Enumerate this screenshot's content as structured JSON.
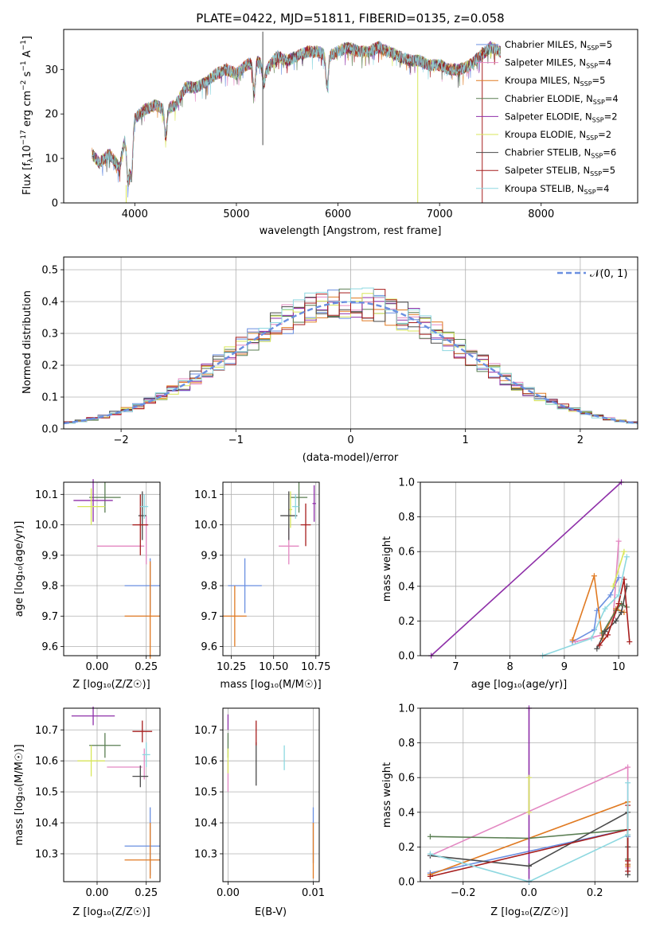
{
  "figure_title": "PLATE=0422, MJD=51811, FIBERID=0135, z=0.058",
  "colors": {
    "Chabrier MILES": "#6a8fe0",
    "Salpeter MILES": "#e388c2",
    "Kroupa MILES": "#e07a22",
    "Chabrier ELODIE": "#5a7e52",
    "Salpeter ELODIE": "#8e2fa8",
    "Kroupa ELODIE": "#d8e65a",
    "Chabrier STELIB": "#4a4a4a",
    "Salpeter STELIB": "#a61d1d",
    "Kroupa STELIB": "#8ed8e0",
    "normal": "#6a8fe0"
  },
  "chart_data": [
    {
      "id": "spectrum",
      "type": "line",
      "title": "PLATE=0422, MJD=51811, FIBERID=0135, z=0.058",
      "xlabel": "wavelength [Angstrom, rest frame]",
      "ylabel": "Flux [f_λ 10^-17 erg cm^-2 s^-1 A^-1]",
      "xlim": [
        3300,
        8950
      ],
      "ylim": [
        0,
        39
      ],
      "xticks": [
        4000,
        5000,
        6000,
        7000,
        8000
      ],
      "yticks": [
        0,
        10,
        20,
        30
      ],
      "legend_position": "right",
      "series": [
        {
          "name": "Chabrier MILES, N_SSP=5",
          "label_main": "Chabrier MILES, N",
          "label_sub": "SSP",
          "label_tail": "=5"
        },
        {
          "name": "Salpeter MILES, N_SSP=4",
          "label_main": "Salpeter MILES, N",
          "label_sub": "SSP",
          "label_tail": "=4"
        },
        {
          "name": "Kroupa MILES, N_SSP=5",
          "label_main": "Kroupa MILES, N",
          "label_sub": "SSP",
          "label_tail": "=5"
        },
        {
          "name": "Chabrier ELODIE, N_SSP=4",
          "label_main": "Chabrier ELODIE, N",
          "label_sub": "SSP",
          "label_tail": "=4"
        },
        {
          "name": "Salpeter ELODIE, N_SSP=2",
          "label_main": "Salpeter ELODIE, N",
          "label_sub": "SSP",
          "label_tail": "=2"
        },
        {
          "name": "Kroupa ELODIE, N_SSP=2",
          "label_main": "Kroupa ELODIE, N",
          "label_sub": "SSP",
          "label_tail": "=2"
        },
        {
          "name": "Chabrier STELIB, N_SSP=6",
          "label_main": "Chabrier STELIB, N",
          "label_sub": "SSP",
          "label_tail": "=6"
        },
        {
          "name": "Salpeter STELIB, N_SSP=5",
          "label_main": "Salpeter STELIB, N",
          "label_sub": "SSP",
          "label_tail": "=5"
        },
        {
          "name": "Kroupa STELIB, N_SSP=4",
          "label_main": "Kroupa STELIB, N",
          "label_sub": "SSP",
          "label_tail": "=4"
        }
      ],
      "continuum": {
        "x": [
          3580,
          3650,
          3750,
          3850,
          3900,
          3950,
          4000,
          4100,
          4200,
          4300,
          4400,
          4500,
          4600,
          4700,
          4800,
          4900,
          5000,
          5100,
          5200,
          5300,
          5400,
          5500,
          5600,
          5700,
          5800,
          5900,
          6000,
          6100,
          6200,
          6300,
          6400,
          6500,
          6600,
          6700,
          6800,
          6900,
          7000,
          7100,
          7200,
          7300,
          7400,
          7500,
          7600
        ],
        "y": [
          11,
          9,
          11,
          8,
          14,
          12,
          19,
          21,
          22,
          21,
          22,
          26,
          26,
          27,
          29,
          30,
          29,
          31,
          32,
          30,
          33,
          32,
          33,
          34,
          34,
          33,
          34,
          35,
          34,
          34,
          35,
          34,
          33,
          32,
          32,
          31,
          31,
          30,
          30,
          31,
          33,
          35,
          34
        ]
      },
      "absorption_lines": [
        {
          "x": 3933,
          "y": 5
        },
        {
          "x": 3968,
          "y": 6
        },
        {
          "x": 4305,
          "y": 15
        },
        {
          "x": 5175,
          "y": 25
        },
        {
          "x": 5270,
          "y": 27
        },
        {
          "x": 5893,
          "y": 26
        }
      ],
      "spikes": [
        {
          "x": 3915,
          "y_top": 4,
          "y_bottom": 0,
          "series": 5
        },
        {
          "x": 5260,
          "y_top": 38.5,
          "y_bottom": 13,
          "series": 6
        },
        {
          "x": 6785,
          "y_top": 31,
          "y_bottom": 0,
          "series": 5
        },
        {
          "x": 7420,
          "y_top": 35,
          "y_bottom": 0,
          "series": 7
        }
      ]
    },
    {
      "id": "residuals",
      "type": "histogram",
      "xlabel": "(data-model)/error",
      "ylabel": "Normed distribution",
      "xlim": [
        -2.5,
        2.5
      ],
      "ylim": [
        0,
        0.54
      ],
      "xticks": [
        -2,
        -1,
        0,
        1,
        2
      ],
      "xtick_labels": [
        "−2",
        "−1",
        "0",
        "1",
        "2"
      ],
      "yticks": [
        0.0,
        0.1,
        0.2,
        0.3,
        0.4,
        0.5
      ],
      "ytick_labels": [
        "0.0",
        "0.1",
        "0.2",
        "0.3",
        "0.4",
        "0.5"
      ],
      "grid": true,
      "legend_position": "top-right",
      "normal_label": "𝒩(0, 1)",
      "bin_width": 0.1
    },
    {
      "id": "age_vs_Z",
      "type": "scatter",
      "xlabel": "Z [log₁₀(Z/Z☉)]",
      "ylabel": "age  [log₁₀(age/yr)]",
      "xlim": [
        -0.17,
        0.32
      ],
      "ylim": [
        9.57,
        10.14
      ],
      "xticks": [
        0.0,
        0.25
      ],
      "xtick_labels": [
        "0.00",
        "0.25"
      ],
      "yticks": [
        9.6,
        9.7,
        9.8,
        9.9,
        10.0,
        10.1
      ],
      "ytick_labels": [
        "9.6",
        "9.7",
        "9.8",
        "9.9",
        "10.0",
        "10.1"
      ],
      "grid": true,
      "points": [
        {
          "series": 0,
          "x": 0.23,
          "xerr": 0.09,
          "y": 9.8,
          "yerr": 0.0
        },
        {
          "series": 0,
          "x": 0.27,
          "xerr": 0.0,
          "y": 9.8,
          "yerr": 0.09
        },
        {
          "series": 1,
          "x": 0.12,
          "xerr": 0.12,
          "y": 9.93,
          "yerr": 0.0
        },
        {
          "series": 1,
          "x": 0.25,
          "xerr": 0.0,
          "y": 9.95,
          "yerr": 0.08
        },
        {
          "series": 2,
          "x": 0.23,
          "xerr": 0.09,
          "y": 9.7,
          "yerr": 0.0
        },
        {
          "series": 2,
          "x": 0.27,
          "xerr": 0.0,
          "y": 9.72,
          "yerr": 0.16
        },
        {
          "series": 3,
          "x": 0.04,
          "xerr": 0.08,
          "y": 10.09,
          "yerr": 0.05
        },
        {
          "series": 4,
          "x": -0.02,
          "xerr": 0.1,
          "y": 10.08,
          "yerr": 0.07
        },
        {
          "series": 5,
          "x": -0.03,
          "xerr": 0.07,
          "y": 10.06,
          "yerr": 0.06
        },
        {
          "series": 6,
          "x": 0.23,
          "xerr": 0.02,
          "y": 10.03,
          "yerr": 0.08
        },
        {
          "series": 7,
          "x": 0.22,
          "xerr": 0.04,
          "y": 10.0,
          "yerr": 0.1
        },
        {
          "series": 8,
          "x": 0.24,
          "xerr": 0.02,
          "y": 10.06,
          "yerr": 0.04
        }
      ]
    },
    {
      "id": "age_vs_mass",
      "type": "scatter",
      "xlabel": "mass [log₁₀(M/M☉)]",
      "ylabel": "",
      "xlim": [
        10.2,
        10.77
      ],
      "ylim": [
        9.57,
        10.14
      ],
      "xticks": [
        10.25,
        10.5,
        10.75
      ],
      "xtick_labels": [
        "10.25",
        "10.50",
        "10.75"
      ],
      "yticks": [
        9.6,
        9.7,
        9.8,
        9.9,
        10.0,
        10.1
      ],
      "ytick_labels": [
        "9.6",
        "9.7",
        "9.8",
        "9.9",
        "10.0",
        "10.1"
      ],
      "grid": true,
      "points": [
        {
          "series": 0,
          "x": 10.33,
          "xerr": 0.1,
          "y": 9.8,
          "yerr": 0.09
        },
        {
          "series": 1,
          "x": 10.59,
          "xerr": 0.06,
          "y": 9.93,
          "yerr": 0.06
        },
        {
          "series": 2,
          "x": 10.27,
          "xerr": 0.07,
          "y": 9.7,
          "yerr": 0.1
        },
        {
          "series": 3,
          "x": 10.65,
          "xerr": 0.05,
          "y": 10.09,
          "yerr": 0.05
        },
        {
          "series": 4,
          "x": 10.74,
          "xerr": 0.01,
          "y": 10.07,
          "yerr": 0.06
        },
        {
          "series": 5,
          "x": 10.6,
          "xerr": 0.01,
          "y": 10.05,
          "yerr": 0.06
        },
        {
          "series": 6,
          "x": 10.59,
          "xerr": 0.05,
          "y": 10.03,
          "yerr": 0.08
        },
        {
          "series": 7,
          "x": 10.69,
          "xerr": 0.03,
          "y": 10.0,
          "yerr": 0.07
        },
        {
          "series": 8,
          "x": 10.63,
          "xerr": 0.02,
          "y": 10.06,
          "yerr": 0.04
        }
      ]
    },
    {
      "id": "weight_vs_age",
      "type": "line",
      "xlabel": "age  [log₁₀(age/yr)]",
      "ylabel": "mass weight",
      "xlim": [
        6.35,
        10.35
      ],
      "ylim": [
        0,
        1
      ],
      "xticks": [
        7,
        8,
        9,
        10
      ],
      "xtick_labels": [
        "7",
        "8",
        "9",
        "10"
      ],
      "yticks": [
        0.0,
        0.2,
        0.4,
        0.6,
        0.8,
        1.0
      ],
      "ytick_labels": [
        "0.0",
        "0.2",
        "0.4",
        "0.6",
        "0.8",
        "1.0"
      ],
      "grid": true,
      "series": [
        {
          "series": 0,
          "x": [
            9.15,
            9.55,
            9.6,
            9.85,
            10.0
          ],
          "y": [
            0.08,
            0.15,
            0.26,
            0.35,
            0.45
          ]
        },
        {
          "series": 1,
          "x": [
            9.2,
            9.7,
            9.9,
            10.0
          ],
          "y": [
            0.08,
            0.12,
            0.22,
            0.66
          ]
        },
        {
          "series": 2,
          "x": [
            9.15,
            9.55,
            9.7,
            9.95,
            10.1
          ],
          "y": [
            0.09,
            0.46,
            0.1,
            0.27,
            0.25
          ]
        },
        {
          "series": 3,
          "x": [
            9.7,
            9.95,
            10.05,
            10.15
          ],
          "y": [
            0.13,
            0.26,
            0.3,
            0.28
          ]
        },
        {
          "series": 4,
          "x": [
            6.55,
            10.05
          ],
          "y": [
            0.0,
            1.0
          ]
        },
        {
          "series": 5,
          "x": [
            9.9,
            10.1
          ],
          "y": [
            0.4,
            0.6
          ]
        },
        {
          "series": 6,
          "x": [
            9.6,
            9.75,
            9.95,
            10.05,
            10.15
          ],
          "y": [
            0.04,
            0.14,
            0.2,
            0.25,
            0.4
          ]
        },
        {
          "series": 7,
          "x": [
            9.65,
            9.8,
            10.0,
            10.1,
            10.2
          ],
          "y": [
            0.06,
            0.12,
            0.3,
            0.44,
            0.08
          ]
        },
        {
          "series": 8,
          "x": [
            8.6,
            9.5,
            9.75,
            10.0,
            10.15
          ],
          "y": [
            0.0,
            0.1,
            0.27,
            0.35,
            0.57
          ]
        }
      ]
    },
    {
      "id": "mass_vs_Z",
      "type": "scatter",
      "xlabel": "Z [log₁₀(Z/Z☉)]",
      "ylabel": "mass [log₁₀(M/M☉)]",
      "xlim": [
        -0.17,
        0.32
      ],
      "ylim": [
        10.21,
        10.77
      ],
      "xticks": [
        0.0,
        0.25
      ],
      "xtick_labels": [
        "0.00",
        "0.25"
      ],
      "yticks": [
        10.3,
        10.4,
        10.5,
        10.6,
        10.7
      ],
      "ytick_labels": [
        "10.3",
        "10.4",
        "10.5",
        "10.6",
        "10.7"
      ],
      "grid": true,
      "points": [
        {
          "series": 0,
          "x": 0.23,
          "xerr": 0.09,
          "y": 10.325,
          "yerr": 0.0
        },
        {
          "series": 0,
          "x": 0.27,
          "xerr": 0.0,
          "y": 10.34,
          "yerr": 0.11
        },
        {
          "series": 1,
          "x": 0.14,
          "xerr": 0.09,
          "y": 10.58,
          "yerr": 0.0
        },
        {
          "series": 1,
          "x": 0.24,
          "xerr": 0.0,
          "y": 10.59,
          "yerr": 0.05
        },
        {
          "series": 2,
          "x": 0.23,
          "xerr": 0.09,
          "y": 10.28,
          "yerr": 0.0
        },
        {
          "series": 2,
          "x": 0.27,
          "xerr": 0.0,
          "y": 10.31,
          "yerr": 0.09
        },
        {
          "series": 3,
          "x": 0.04,
          "xerr": 0.08,
          "y": 10.65,
          "yerr": 0.04
        },
        {
          "series": 4,
          "x": -0.02,
          "xerr": 0.11,
          "y": 10.745,
          "yerr": 0.03
        },
        {
          "series": 5,
          "x": -0.03,
          "xerr": 0.07,
          "y": 10.6,
          "yerr": 0.05
        },
        {
          "series": 6,
          "x": 0.22,
          "xerr": 0.04,
          "y": 10.55,
          "yerr": 0.035
        },
        {
          "series": 7,
          "x": 0.23,
          "xerr": 0.05,
          "y": 10.695,
          "yerr": 0.035
        },
        {
          "series": 8,
          "x": 0.25,
          "xerr": 0.02,
          "y": 10.62,
          "yerr": 0.04
        }
      ]
    },
    {
      "id": "mass_vs_ebv",
      "type": "scatter",
      "xlabel": "E(B-V)",
      "ylabel": "",
      "xlim": [
        -0.0006,
        0.0107
      ],
      "ylim": [
        10.21,
        10.77
      ],
      "xticks": [
        0.0,
        0.01
      ],
      "xtick_labels": [
        "0.00",
        "0.01"
      ],
      "yticks": [
        10.3,
        10.4,
        10.5,
        10.6,
        10.7
      ],
      "ytick_labels": [
        "10.3",
        "10.4",
        "10.5",
        "10.6",
        "10.7"
      ],
      "grid": true,
      "points": [
        {
          "series": 0,
          "x": 0.01,
          "xerr": 0.0,
          "y": 10.36,
          "yerr": 0.09
        },
        {
          "series": 1,
          "x": 0.0,
          "xerr": 0.0,
          "y": 10.55,
          "yerr": 0.05
        },
        {
          "series": 2,
          "x": 0.01,
          "xerr": 0.0,
          "y": 10.31,
          "yerr": 0.09
        },
        {
          "series": 3,
          "x": 0.0,
          "xerr": 0.0,
          "y": 10.65,
          "yerr": 0.04
        },
        {
          "series": 4,
          "x": 0.0,
          "xerr": 0.0,
          "y": 10.725,
          "yerr": 0.025
        },
        {
          "series": 5,
          "x": 0.0,
          "xerr": 0.0,
          "y": 10.6,
          "yerr": 0.04
        },
        {
          "series": 6,
          "x": 0.0033,
          "xerr": 0.0,
          "y": 10.59,
          "yerr": 0.07
        },
        {
          "series": 7,
          "x": 0.0033,
          "xerr": 0.0,
          "y": 10.69,
          "yerr": 0.04
        },
        {
          "series": 8,
          "x": 0.0066,
          "xerr": 0.0,
          "y": 10.61,
          "yerr": 0.04
        }
      ]
    },
    {
      "id": "weight_vs_Z",
      "type": "line",
      "xlabel": "Z [log₁₀(Z/Z☉)]",
      "ylabel": "mass weight",
      "xlim": [
        -0.33,
        0.33
      ],
      "ylim": [
        0,
        1
      ],
      "xticks": [
        -0.2,
        0.0,
        0.2
      ],
      "xtick_labels": [
        "−0.2",
        "0.0",
        "0.2"
      ],
      "yticks": [
        0.0,
        0.2,
        0.4,
        0.6,
        0.8,
        1.0
      ],
      "ytick_labels": [
        "0.0",
        "0.2",
        "0.4",
        "0.6",
        "0.8",
        "1.0"
      ],
      "grid": true,
      "series": [
        {
          "series": 0,
          "x": [
            -0.3,
            0.3,
            0.3,
            0.3,
            0.3
          ],
          "y": [
            0.05,
            0.3,
            0.26,
            0.1,
            0.06
          ]
        },
        {
          "series": 1,
          "x": [
            -0.3,
            0.3,
            0.3,
            0.3
          ],
          "y": [
            0.15,
            0.66,
            0.12,
            0.08
          ]
        },
        {
          "series": 2,
          "x": [
            -0.3,
            0.3,
            0.3,
            0.3,
            0.3
          ],
          "y": [
            0.04,
            0.46,
            0.27,
            0.1,
            0.09
          ]
        },
        {
          "series": 3,
          "x": [
            -0.3,
            0.0,
            0.3,
            0.3
          ],
          "y": [
            0.26,
            0.25,
            0.3,
            0.13
          ]
        },
        {
          "series": 4,
          "x": [
            0.0,
            0.0
          ],
          "y": [
            0.0,
            1.0
          ]
        },
        {
          "series": 5,
          "x": [
            0.0,
            0.0
          ],
          "y": [
            0.4,
            0.6
          ]
        },
        {
          "series": 6,
          "x": [
            -0.3,
            0.0,
            0.3,
            0.3,
            0.3
          ],
          "y": [
            0.15,
            0.09,
            0.4,
            0.2,
            0.04
          ]
        },
        {
          "series": 7,
          "x": [
            -0.3,
            0.3,
            0.3,
            0.3,
            0.3
          ],
          "y": [
            0.03,
            0.3,
            0.44,
            0.12,
            0.06
          ]
        },
        {
          "series": 8,
          "x": [
            -0.3,
            0.0,
            0.3,
            0.3
          ],
          "y": [
            0.16,
            0.0,
            0.27,
            0.57
          ]
        }
      ]
    }
  ]
}
